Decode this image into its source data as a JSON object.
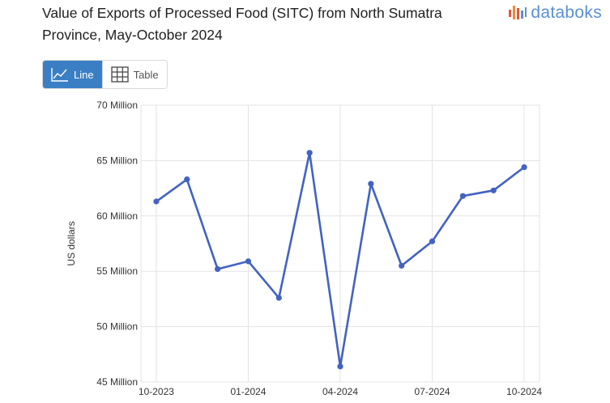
{
  "title": "Value of Exports of Processed Food (SITC) from North Sumatra Province, May-October 2024",
  "brand": {
    "name": "databoks",
    "icon": "databoks-logo-icon"
  },
  "tabs": [
    {
      "label": "Line",
      "icon": "line-chart-icon",
      "active": true
    },
    {
      "label": "Table",
      "icon": "table-grid-icon",
      "active": false
    }
  ],
  "colors": {
    "line": "#4362c2",
    "tab_active": "#3a7fc4",
    "brand": "#5a8fd6",
    "grid": "#e3e3e3"
  },
  "chart_data": {
    "type": "line",
    "title": "Value of Exports of Processed Food (SITC) from North Sumatra Province, May-October 2024",
    "xlabel": "",
    "ylabel": "US dollars",
    "ylim": [
      45000000,
      70000000
    ],
    "yticks": [
      45000000,
      50000000,
      55000000,
      60000000,
      65000000,
      70000000
    ],
    "ytick_labels": [
      "45 Million",
      "50 Million",
      "55 Million",
      "60 Million",
      "65 Million",
      "70 Million"
    ],
    "xlim": [
      "2023-10",
      "2024-10"
    ],
    "xticks": [
      "2023-10",
      "2024-01",
      "2024-04",
      "2024-07",
      "2024-10"
    ],
    "xtick_labels": [
      "10-2023",
      "01-2024",
      "04-2024",
      "07-2024",
      "10-2024"
    ],
    "grid": true,
    "legend": "none",
    "series": [
      {
        "x": [
          "2023-10",
          "2023-11",
          "2023-12",
          "2024-01",
          "2024-02",
          "2024-03",
          "2024-04",
          "2024-05",
          "2024-06",
          "2024-07",
          "2024-08",
          "2024-09",
          "2024-10"
        ],
        "values": [
          61300000,
          63300000,
          55200000,
          55900000,
          52600000,
          65700000,
          46400000,
          62900000,
          55500000,
          57700000,
          61800000,
          62300000,
          64400000
        ]
      }
    ]
  }
}
